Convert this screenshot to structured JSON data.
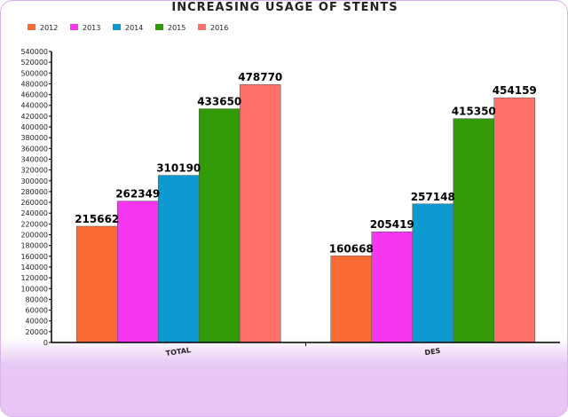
{
  "colors": {
    "2012": "#fa6a35",
    "2013": "#f637f1",
    "2014": "#0d9ad0",
    "2015": "#339a07",
    "2016": "#ff7069",
    "axis": "#000000",
    "background_bottom": "#e7c4f4"
  },
  "chart_data": {
    "type": "bar",
    "title": "INCREASING USAGE OF STENTS",
    "xlabel": "",
    "ylabel": "",
    "categories": [
      "TOTAL",
      "DES"
    ],
    "series": [
      {
        "name": "2012",
        "values": [
          215662,
          160668
        ]
      },
      {
        "name": "2013",
        "values": [
          262349,
          205419
        ]
      },
      {
        "name": "2014",
        "values": [
          310190,
          257148
        ]
      },
      {
        "name": "2015",
        "values": [
          433650,
          415350
        ]
      },
      {
        "name": "2016",
        "values": [
          478770,
          454159
        ]
      }
    ],
    "ylim": [
      0,
      540000
    ],
    "ytick_step": 20000,
    "grid": false,
    "legend_position": "top-left"
  }
}
